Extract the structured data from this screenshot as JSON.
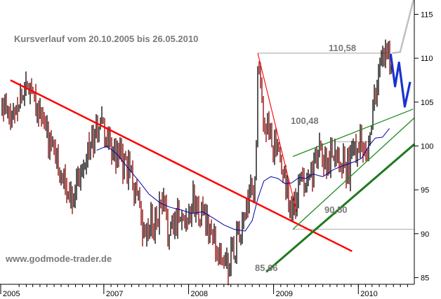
{
  "chart_data": {
    "type": "line",
    "title": "Kursverlauf vom 20.10.2005 bis 26.05.2010",
    "watermark": "www.godmode-trader.de",
    "x_tick_labels": [
      "2005",
      "2007",
      "2008",
      "2009",
      "2010"
    ],
    "y_tick_labels": [
      "85",
      "90",
      "95",
      "100",
      "105",
      "110",
      "115"
    ],
    "ylim": [
      84,
      115.5
    ],
    "xlim": [
      "2005-10-20",
      "2010-08-30"
    ],
    "grid": false,
    "colors": {
      "price_up": "#000000",
      "price_down": "#8b0000",
      "moving_average": "#0000aa",
      "downtrend_line": "#ff0000",
      "support_line": "#1f7a1f",
      "channel_lines": "#228b22",
      "projection": "#1a33cc",
      "levels": "#c0c0c0"
    },
    "series": [
      {
        "key": "price",
        "x": [
          "2005-10-20",
          "2005-11-25",
          "2006-01-10",
          "2006-02-20",
          "2006-04-01",
          "2006-05-15",
          "2006-06-20",
          "2006-08-01",
          "2006-09-15",
          "2006-10-15",
          "2006-11-15",
          "2006-12-15",
          "2007-01-20",
          "2007-03-01",
          "2007-04-15",
          "2007-05-20",
          "2007-06-20",
          "2007-08-01",
          "2007-09-15",
          "2007-10-15",
          "2007-11-15",
          "2007-12-15",
          "2008-01-20",
          "2008-03-01",
          "2008-04-15",
          "2008-05-20",
          "2008-06-20",
          "2008-07-15",
          "2008-08-15",
          "2008-09-15",
          "2008-10-15",
          "2008-10-25",
          "2008-11-20",
          "2008-12-20",
          "2009-01-20",
          "2009-02-20",
          "2009-03-10",
          "2009-03-25",
          "2009-04-20",
          "2009-05-20",
          "2009-06-20",
          "2009-07-20",
          "2009-08-20",
          "2009-09-20",
          "2009-10-20",
          "2009-11-20",
          "2009-12-10",
          "2009-12-25",
          "2010-01-15",
          "2010-02-10",
          "2010-03-01",
          "2010-03-20",
          "2010-04-10",
          "2010-05-01",
          "2010-05-15",
          "2010-05-26"
        ],
        "values": [
          104.5,
          103.0,
          106.0,
          107.5,
          103.5,
          100.0,
          98.0,
          94.0,
          96.5,
          99.5,
          100.5,
          103.0,
          100.0,
          98.5,
          97.0,
          95.0,
          89.0,
          91.5,
          93.0,
          89.5,
          92.5,
          91.5,
          93.5,
          92.0,
          89.5,
          87.0,
          86.5,
          88.5,
          90.5,
          93.5,
          96.0,
          108.5,
          103.0,
          101.0,
          98.5,
          96.0,
          94.0,
          92.0,
          95.5,
          97.0,
          97.5,
          99.5,
          98.0,
          100.0,
          99.0,
          97.0,
          99.5,
          100.5,
          101.0,
          99.5,
          104.0,
          106.5,
          109.5,
          111.5,
          110.0,
          110.58
        ]
      },
      {
        "key": "moving_average",
        "x": [
          "2006-12-01",
          "2007-01-15",
          "2007-03-01",
          "2007-04-15",
          "2007-06-01",
          "2007-07-15",
          "2007-09-01",
          "2007-10-15",
          "2007-12-01",
          "2008-01-15",
          "2008-03-01",
          "2008-04-15",
          "2008-06-01",
          "2008-07-15",
          "2008-09-01",
          "2008-10-01",
          "2008-10-25",
          "2008-11-20",
          "2008-12-20",
          "2009-01-20",
          "2009-02-20",
          "2009-03-20",
          "2009-04-20",
          "2009-05-20",
          "2009-06-20",
          "2009-08-01",
          "2009-09-15",
          "2009-11-01",
          "2009-12-15",
          "2010-01-15",
          "2010-02-15",
          "2010-03-15",
          "2010-04-15",
          "2010-05-15"
        ],
        "values": [
          99.5,
          100.0,
          99.0,
          97.5,
          96.0,
          94.5,
          93.5,
          93.0,
          92.7,
          92.3,
          92.5,
          91.8,
          91.0,
          90.5,
          90.3,
          91.5,
          94.0,
          96.0,
          96.5,
          96.3,
          95.7,
          95.8,
          96.4,
          96.3,
          96.8,
          96.5,
          97.3,
          97.8,
          98.2,
          98.6,
          100.0,
          100.9,
          101.0,
          102.0
        ]
      }
    ],
    "trendlines": [
      {
        "key": "downtrend_line",
        "from": [
          "2005-11-25",
          107.5
        ],
        "to": [
          "2009-12-05",
          88.0
        ]
      },
      {
        "key": "support_line",
        "from": [
          "2008-12-01",
          85.66
        ],
        "to": [
          "2010-08-30",
          100.2
        ]
      },
      {
        "key": "channel_upper",
        "from": [
          "2009-03-25",
          98.8
        ],
        "to": [
          "2010-08-25",
          104.2
        ]
      },
      {
        "key": "channel_lower",
        "from": [
          "2009-03-25",
          90.5
        ],
        "to": [
          "2010-08-30",
          103.2
        ]
      },
      {
        "key": "fan_line",
        "from": [
          "2008-10-25",
          110.58
        ],
        "to": [
          "2009-04-10",
          92.5
        ]
      }
    ],
    "levels": [
      {
        "key": "level_high",
        "value": 110.58,
        "from": "2008-10-25",
        "label": "110,58"
      },
      {
        "key": "level_mid",
        "value": 100.48,
        "from": "2009-09-20",
        "label": "100,48"
      },
      {
        "key": "level_low",
        "value": 90.5,
        "from": "2009-03-25",
        "label": "90,50"
      },
      {
        "key": "level_bottom",
        "value": 85.66,
        "label": "85,66"
      }
    ],
    "projection": {
      "key": "projection",
      "x": [
        "2010-05-20",
        "2010-06-08",
        "2010-06-25",
        "2010-07-20",
        "2010-08-12"
      ],
      "values": [
        110.5,
        106.8,
        109.5,
        104.5,
        107.3
      ]
    },
    "exit_line": {
      "x": [
        "2010-05-26",
        "2010-06-30",
        "2010-08-30"
      ],
      "values": [
        110.58,
        110.7,
        117
      ]
    }
  }
}
